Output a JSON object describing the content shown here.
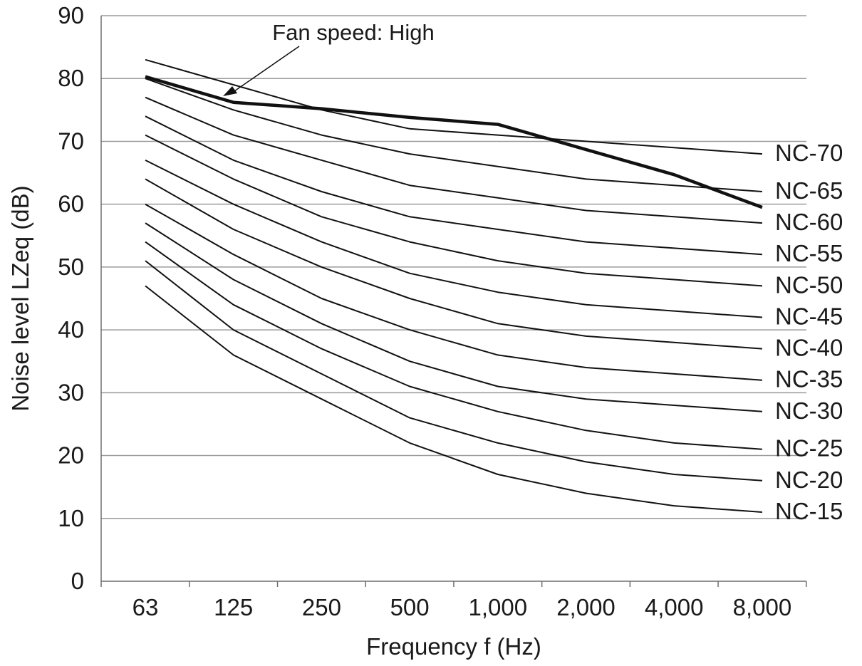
{
  "chart_data": {
    "type": "line",
    "xlabel": "Frequency f (Hz)",
    "ylabel": "Noise level LZeq (dB)",
    "ylim": [
      0,
      90
    ],
    "yticks": [
      "0",
      "10",
      "20",
      "30",
      "40",
      "50",
      "60",
      "70",
      "80",
      "90"
    ],
    "categories": [
      "63",
      "125",
      "250",
      "500",
      "1,000",
      "2,000",
      "4,000",
      "8,000"
    ],
    "grid": "horizontal",
    "series": [
      {
        "name": "NC-70",
        "values": [
          83,
          79,
          75,
          72,
          71,
          70,
          69,
          68
        ]
      },
      {
        "name": "NC-65",
        "values": [
          80,
          75,
          71,
          68,
          66,
          64,
          63,
          62
        ]
      },
      {
        "name": "NC-60",
        "values": [
          77,
          71,
          67,
          63,
          61,
          59,
          58,
          57
        ]
      },
      {
        "name": "NC-55",
        "values": [
          74,
          67,
          62,
          58,
          56,
          54,
          53,
          52
        ]
      },
      {
        "name": "NC-50",
        "values": [
          71,
          64,
          58,
          54,
          51,
          49,
          48,
          47
        ]
      },
      {
        "name": "NC-45",
        "values": [
          67,
          60,
          54,
          49,
          46,
          44,
          43,
          42
        ]
      },
      {
        "name": "NC-40",
        "values": [
          64,
          56,
          50,
          45,
          41,
          39,
          38,
          37
        ]
      },
      {
        "name": "NC-35",
        "values": [
          60,
          52,
          45,
          40,
          36,
          34,
          33,
          32
        ]
      },
      {
        "name": "NC-30",
        "values": [
          57,
          48,
          41,
          35,
          31,
          29,
          28,
          27
        ]
      },
      {
        "name": "NC-25",
        "values": [
          54,
          44,
          37,
          31,
          27,
          24,
          22,
          21
        ]
      },
      {
        "name": "NC-20",
        "values": [
          51,
          40,
          33,
          26,
          22,
          19,
          17,
          16
        ]
      },
      {
        "name": "NC-15",
        "values": [
          47,
          36,
          29,
          22,
          17,
          14,
          12,
          11
        ]
      }
    ],
    "fan_series": {
      "values": [
        80.3,
        76.2,
        75.2,
        73.8,
        72.7,
        68.7,
        64.7,
        59.5
      ]
    },
    "annotation": "Fan speed: High"
  }
}
